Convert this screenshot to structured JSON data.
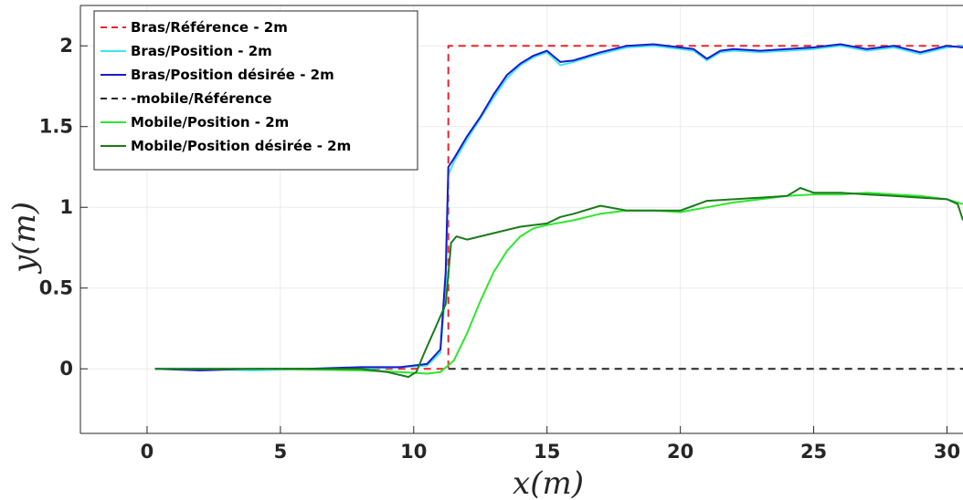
{
  "chart_data": {
    "type": "line",
    "xlabel": "x(m)",
    "ylabel": "y(m)",
    "xlim": [
      -2.5,
      30.6
    ],
    "ylim": [
      -0.4,
      2.25
    ],
    "x_ticks": [
      0,
      5,
      10,
      15,
      20,
      25,
      30
    ],
    "y_ticks": [
      0,
      0.5,
      1,
      1.5,
      2
    ],
    "x_tick_labels": [
      "0",
      "5",
      "10",
      "15",
      "20",
      "25",
      "30"
    ],
    "y_tick_labels": [
      "0",
      "0.5",
      "1",
      "1.5",
      "2"
    ],
    "grid": true,
    "legend_position": "top-left",
    "series": [
      {
        "name": "Bras/Référence - 2m",
        "color": "#e8252b",
        "dash": "dashed",
        "x": [
          0.3,
          11.3,
          11.3,
          30.6
        ],
        "y": [
          0,
          0,
          2,
          2
        ]
      },
      {
        "name": "Bras/Position - 2m",
        "color": "#3ee6ee",
        "dash": "solid",
        "x": [
          0.3,
          2,
          4,
          6,
          8,
          9.5,
          10.5,
          11.0,
          11.2,
          11.3,
          11.5,
          12,
          12.5,
          13,
          13.5,
          14,
          14.5,
          15,
          15.5,
          16,
          17,
          18,
          19,
          20,
          20.5,
          21,
          21.5,
          22,
          23,
          24,
          25,
          26,
          27,
          28,
          29,
          30,
          30.6
        ],
        "y": [
          0,
          0,
          -0.01,
          0,
          0,
          0.01,
          0.02,
          0.1,
          0.5,
          1.2,
          1.28,
          1.42,
          1.55,
          1.68,
          1.8,
          1.88,
          1.93,
          1.96,
          1.88,
          1.9,
          1.95,
          1.99,
          2.0,
          1.98,
          1.97,
          1.91,
          1.96,
          1.97,
          1.96,
          1.97,
          1.98,
          2.0,
          1.97,
          1.99,
          1.95,
          1.99,
          2.0
        ]
      },
      {
        "name": "Bras/Position désirée - 2m",
        "color": "#1a1acc",
        "dash": "solid",
        "x": [
          0.3,
          2,
          4,
          6,
          8,
          9.5,
          10.5,
          11.0,
          11.2,
          11.3,
          11.5,
          12,
          12.5,
          13,
          13.5,
          14,
          14.5,
          15,
          15.5,
          16,
          17,
          18,
          19,
          20,
          20.5,
          21,
          21.5,
          22,
          23,
          24,
          25,
          26,
          27,
          28,
          29,
          30,
          30.6
        ],
        "y": [
          0,
          -0.01,
          0,
          0,
          0.01,
          0.01,
          0.03,
          0.12,
          0.6,
          1.25,
          1.3,
          1.44,
          1.56,
          1.7,
          1.82,
          1.89,
          1.94,
          1.97,
          1.9,
          1.91,
          1.96,
          2.0,
          2.01,
          1.99,
          1.98,
          1.92,
          1.97,
          1.98,
          1.97,
          1.98,
          1.99,
          2.01,
          1.98,
          2.0,
          1.96,
          2.0,
          1.99
        ]
      },
      {
        "name": "-mobile/Référence",
        "color": "#262626",
        "dash": "dashed",
        "x": [
          11.3,
          30.6
        ],
        "y": [
          0,
          0
        ]
      },
      {
        "name": "Mobile/Position - 2m",
        "color": "#2ee62e",
        "dash": "solid",
        "x": [
          0.3,
          4,
          8,
          9.5,
          10.5,
          11.0,
          11.5,
          12,
          12.5,
          13,
          13.5,
          14,
          14.5,
          15,
          16,
          17,
          18,
          19,
          20,
          21,
          22,
          23,
          24,
          25,
          26,
          27,
          28,
          29,
          30,
          30.6
        ],
        "y": [
          0,
          0,
          -0.01,
          -0.02,
          -0.03,
          -0.02,
          0.05,
          0.22,
          0.42,
          0.6,
          0.73,
          0.82,
          0.87,
          0.89,
          0.92,
          0.96,
          0.98,
          0.98,
          0.97,
          1.0,
          1.03,
          1.05,
          1.07,
          1.08,
          1.08,
          1.09,
          1.08,
          1.07,
          1.05,
          1.02
        ]
      },
      {
        "name": "Mobile/Position désirée - 2m",
        "color": "#1a7a1a",
        "dash": "solid",
        "x": [
          0.3,
          4,
          8,
          9,
          9.8,
          10.1,
          10.4,
          10.8,
          11.2,
          11.4,
          11.6,
          12,
          13,
          14,
          15,
          15.5,
          16,
          17,
          18,
          19,
          20,
          20.5,
          21,
          22,
          23,
          24,
          24.5,
          25,
          26,
          27,
          28,
          29,
          30,
          30.4,
          30.6
        ],
        "y": [
          0,
          0,
          0,
          -0.02,
          -0.05,
          -0.02,
          0.1,
          0.25,
          0.4,
          0.78,
          0.82,
          0.8,
          0.84,
          0.88,
          0.9,
          0.94,
          0.96,
          1.01,
          0.98,
          0.98,
          0.98,
          1.01,
          1.04,
          1.05,
          1.06,
          1.07,
          1.12,
          1.09,
          1.09,
          1.08,
          1.07,
          1.06,
          1.05,
          1.02,
          0.92
        ]
      }
    ]
  }
}
